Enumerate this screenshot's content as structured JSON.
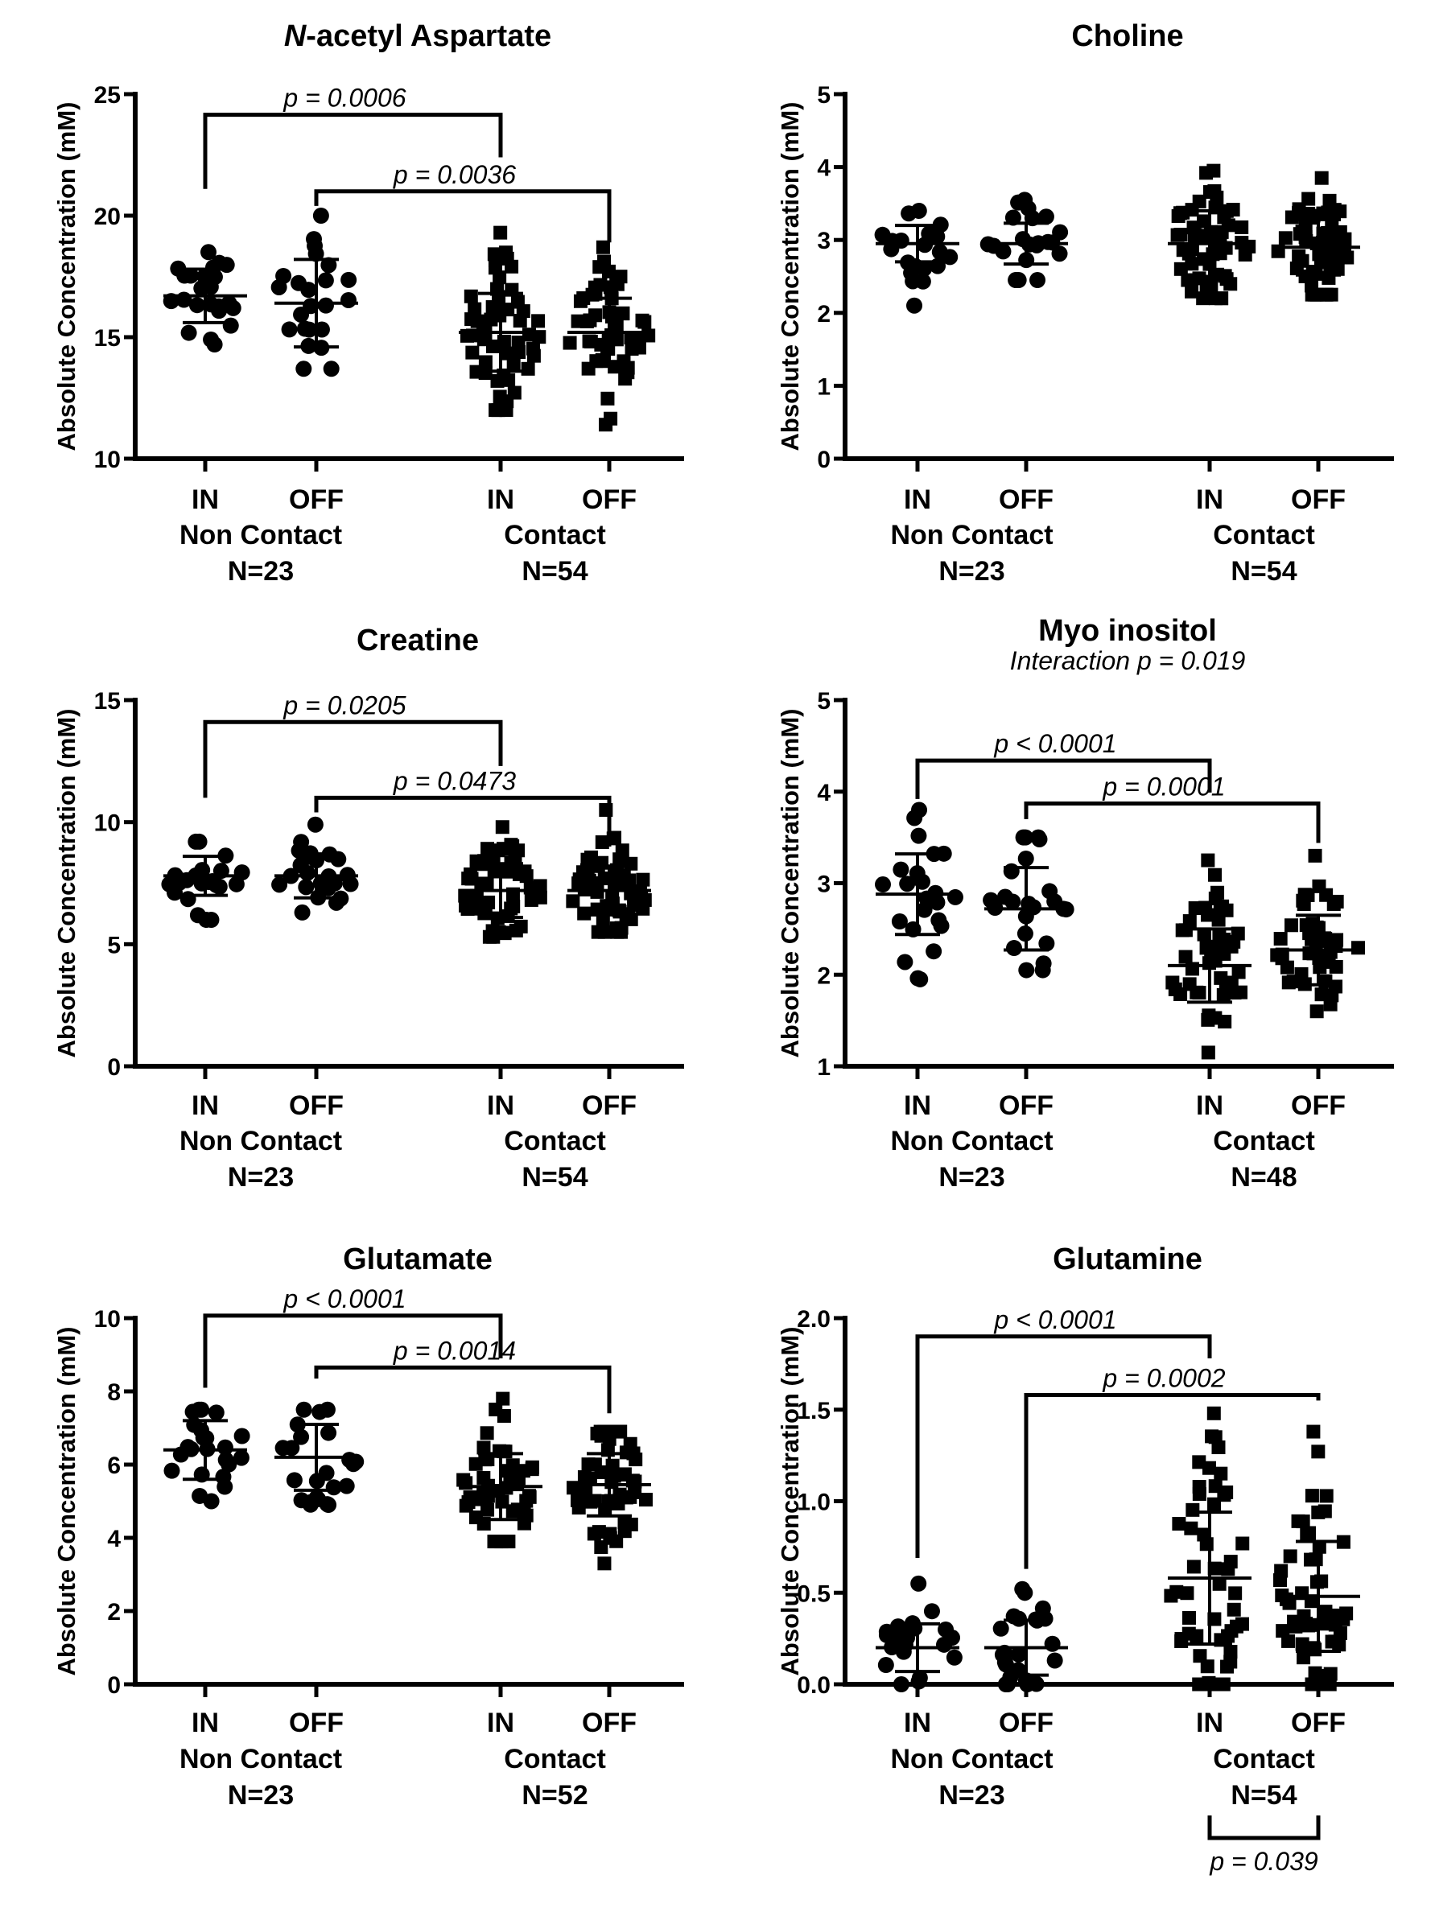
{
  "chart_data": [
    {
      "type": "scatter",
      "title_italic": "N",
      "title": "-acetyl Aspartate",
      "subtitle": "",
      "ylabel": "Absolute Concentration (mM)",
      "ylim": [
        10,
        25
      ],
      "yticks": [
        10,
        15,
        20,
        25
      ],
      "tick_labels": [
        "10",
        "15",
        "20",
        "25"
      ],
      "categories": [
        "IN",
        "OFF",
        "IN",
        "OFF"
      ],
      "groups": [
        {
          "label": "Non Contact",
          "n_label": "N=23"
        },
        {
          "label": "Contact",
          "n_label": "N=54"
        }
      ],
      "series": [
        {
          "name": "Non Contact IN",
          "marker": "circle",
          "n": 23,
          "mean": 16.7,
          "sd": 1.1,
          "min": 14.7,
          "max": 18.5
        },
        {
          "name": "Non Contact OFF",
          "marker": "circle",
          "n": 23,
          "mean": 16.4,
          "sd": 1.8,
          "min": 13.7,
          "max": 20.0
        },
        {
          "name": "Contact IN",
          "marker": "square",
          "n": 54,
          "mean": 15.2,
          "sd": 1.6,
          "min": 12.0,
          "max": 19.3
        },
        {
          "name": "Contact OFF",
          "marker": "square",
          "n": 54,
          "mean": 15.2,
          "sd": 1.4,
          "min": 11.4,
          "max": 18.7
        }
      ],
      "comparisons": [
        {
          "from": 0,
          "to": 2,
          "top": 24.15,
          "left_end": 21.1,
          "right_end": 22.4,
          "label": "p = 0.0006"
        },
        {
          "from": 1,
          "to": 3,
          "top": 21.0,
          "left_end": 20.4,
          "right_end": 18.9,
          "label": "p = 0.0036"
        }
      ]
    },
    {
      "type": "scatter",
      "title_italic": "",
      "title": "Choline",
      "subtitle": "",
      "ylabel": "Absolute Concentration (mM)",
      "ylim": [
        0,
        5
      ],
      "yticks": [
        0,
        1,
        2,
        3,
        4,
        5
      ],
      "tick_labels": [
        "0",
        "1",
        "2",
        "3",
        "4",
        "5"
      ],
      "categories": [
        "IN",
        "OFF",
        "IN",
        "OFF"
      ],
      "groups": [
        {
          "label": "Non Contact",
          "n_label": "N=23"
        },
        {
          "label": "Contact",
          "n_label": "N=54"
        }
      ],
      "series": [
        {
          "name": "Non Contact IN",
          "marker": "circle",
          "n": 23,
          "mean": 2.95,
          "sd": 0.25,
          "min": 2.1,
          "max": 3.4
        },
        {
          "name": "Non Contact OFF",
          "marker": "circle",
          "n": 23,
          "mean": 2.95,
          "sd": 0.28,
          "min": 2.45,
          "max": 3.55
        },
        {
          "name": "Contact IN",
          "marker": "square",
          "n": 54,
          "mean": 2.95,
          "sd": 0.45,
          "min": 2.2,
          "max": 3.95
        },
        {
          "name": "Contact OFF",
          "marker": "square",
          "n": 54,
          "mean": 2.9,
          "sd": 0.38,
          "min": 2.25,
          "max": 3.85
        }
      ],
      "comparisons": []
    },
    {
      "type": "scatter",
      "title_italic": "",
      "title": "Creatine",
      "subtitle": "",
      "ylabel": "Absolute Concentration (mM)",
      "ylim": [
        0,
        15
      ],
      "yticks": [
        0,
        5,
        10,
        15
      ],
      "tick_labels": [
        "0",
        "5",
        "10",
        "15"
      ],
      "categories": [
        "IN",
        "OFF",
        "IN",
        "OFF"
      ],
      "groups": [
        {
          "label": "Non Contact",
          "n_label": "N=23"
        },
        {
          "label": "Contact",
          "n_label": "N=54"
        }
      ],
      "series": [
        {
          "name": "Non Contact IN",
          "marker": "circle",
          "n": 23,
          "mean": 7.8,
          "sd": 0.8,
          "min": 6.0,
          "max": 9.2
        },
        {
          "name": "Non Contact OFF",
          "marker": "circle",
          "n": 23,
          "mean": 7.8,
          "sd": 0.9,
          "min": 6.3,
          "max": 9.9
        },
        {
          "name": "Contact IN",
          "marker": "square",
          "n": 54,
          "mean": 7.2,
          "sd": 1.1,
          "min": 5.3,
          "max": 9.8
        },
        {
          "name": "Contact OFF",
          "marker": "square",
          "n": 54,
          "mean": 7.2,
          "sd": 1.0,
          "min": 5.5,
          "max": 10.5
        }
      ],
      "comparisons": [
        {
          "from": 0,
          "to": 2,
          "top": 14.1,
          "left_end": 11.0,
          "right_end": 12.3,
          "label": "p = 0.0205"
        },
        {
          "from": 1,
          "to": 3,
          "top": 11.0,
          "left_end": 10.4,
          "right_end": 9.0,
          "label": "p = 0.0473"
        }
      ]
    },
    {
      "type": "scatter",
      "title_italic": "",
      "title": "Myo inositol",
      "subtitle": "Interaction p = 0.019",
      "ylabel": "Absolute Concentration (mM)",
      "ylim": [
        1,
        5
      ],
      "yticks": [
        1,
        2,
        3,
        4,
        5
      ],
      "tick_labels": [
        "1",
        "2",
        "3",
        "4",
        "5"
      ],
      "categories": [
        "IN",
        "OFF",
        "IN",
        "OFF"
      ],
      "groups": [
        {
          "label": "Non Contact",
          "n_label": "N=23"
        },
        {
          "label": "Contact",
          "n_label": "N=48"
        }
      ],
      "series": [
        {
          "name": "Non Contact IN",
          "marker": "circle",
          "n": 23,
          "mean": 2.88,
          "sd": 0.44,
          "min": 1.95,
          "max": 3.8
        },
        {
          "name": "Non Contact OFF",
          "marker": "circle",
          "n": 23,
          "mean": 2.72,
          "sd": 0.45,
          "min": 2.05,
          "max": 3.5
        },
        {
          "name": "Contact IN",
          "marker": "square",
          "n": 48,
          "mean": 2.1,
          "sd": 0.4,
          "min": 1.15,
          "max": 3.25
        },
        {
          "name": "Contact OFF",
          "marker": "square",
          "n": 48,
          "mean": 2.27,
          "sd": 0.38,
          "min": 1.6,
          "max": 3.3
        }
      ],
      "comparisons": [
        {
          "from": 0,
          "to": 2,
          "top": 4.34,
          "left_end": 3.92,
          "right_end": 3.99,
          "label": "p < 0.0001"
        },
        {
          "from": 1,
          "to": 3,
          "top": 3.87,
          "left_end": 3.7,
          "right_end": 3.44,
          "label": "p = 0.0001"
        }
      ]
    },
    {
      "type": "scatter",
      "title_italic": "",
      "title": "Glutamate",
      "subtitle": "",
      "ylabel": "Absolute Concentration (mM)",
      "ylim": [
        0,
        10
      ],
      "yticks": [
        0,
        2,
        4,
        6,
        8,
        10
      ],
      "tick_labels": [
        "0",
        "2",
        "4",
        "6",
        "8",
        "10"
      ],
      "categories": [
        "IN",
        "OFF",
        "IN",
        "OFF"
      ],
      "groups": [
        {
          "label": "Non Contact",
          "n_label": "N=23"
        },
        {
          "label": "Contact",
          "n_label": "N=52"
        }
      ],
      "series": [
        {
          "name": "Non Contact IN",
          "marker": "circle",
          "n": 23,
          "mean": 6.4,
          "sd": 0.8,
          "min": 5.0,
          "max": 7.5
        },
        {
          "name": "Non Contact OFF",
          "marker": "circle",
          "n": 23,
          "mean": 6.2,
          "sd": 0.9,
          "min": 4.9,
          "max": 7.5
        },
        {
          "name": "Contact IN",
          "marker": "square",
          "n": 52,
          "mean": 5.4,
          "sd": 0.9,
          "min": 3.9,
          "max": 7.8
        },
        {
          "name": "Contact OFF",
          "marker": "square",
          "n": 52,
          "mean": 5.45,
          "sd": 0.85,
          "min": 3.3,
          "max": 6.9
        }
      ],
      "comparisons": [
        {
          "from": 0,
          "to": 2,
          "top": 10.07,
          "left_end": 8.1,
          "right_end": 8.9,
          "label": "p < 0.0001"
        },
        {
          "from": 1,
          "to": 3,
          "top": 8.65,
          "left_end": 8.35,
          "right_end": 7.4,
          "label": "p = 0.0014"
        }
      ]
    },
    {
      "type": "scatter",
      "title_italic": "",
      "title": "Glutamine",
      "subtitle": "",
      "ylabel": "Absolute Concentration (mM)",
      "ylim": [
        0,
        2
      ],
      "yticks": [
        0,
        0.5,
        1,
        1.5,
        2
      ],
      "tick_labels": [
        "0.0",
        "0.5",
        "1.0",
        "1.5",
        "2.0"
      ],
      "categories": [
        "IN",
        "OFF",
        "IN",
        "OFF"
      ],
      "groups": [
        {
          "label": "Non Contact",
          "n_label": "N=23"
        },
        {
          "label": "Contact",
          "n_label": "N=54"
        }
      ],
      "series": [
        {
          "name": "Non Contact IN",
          "marker": "circle",
          "n": 23,
          "mean": 0.2,
          "sd": 0.13,
          "min": 0.0,
          "max": 0.55
        },
        {
          "name": "Non Contact OFF",
          "marker": "circle",
          "n": 23,
          "mean": 0.2,
          "sd": 0.15,
          "min": 0.0,
          "max": 0.52
        },
        {
          "name": "Contact IN",
          "marker": "square",
          "n": 54,
          "mean": 0.58,
          "sd": 0.36,
          "min": 0.0,
          "max": 1.48
        },
        {
          "name": "Contact OFF",
          "marker": "square",
          "n": 54,
          "mean": 0.48,
          "sd": 0.3,
          "min": 0.0,
          "max": 1.38
        }
      ],
      "comparisons": [
        {
          "from": 0,
          "to": 2,
          "top": 1.9,
          "left_end": 0.69,
          "right_end": 1.78,
          "label": "p < 0.0001"
        },
        {
          "from": 1,
          "to": 3,
          "top": 1.58,
          "left_end": 0.63,
          "right_end": 1.55,
          "label": "p = 0.0002"
        }
      ],
      "bottom_comparison": {
        "from": 2,
        "to": 3,
        "label": "p = 0.039"
      }
    }
  ]
}
